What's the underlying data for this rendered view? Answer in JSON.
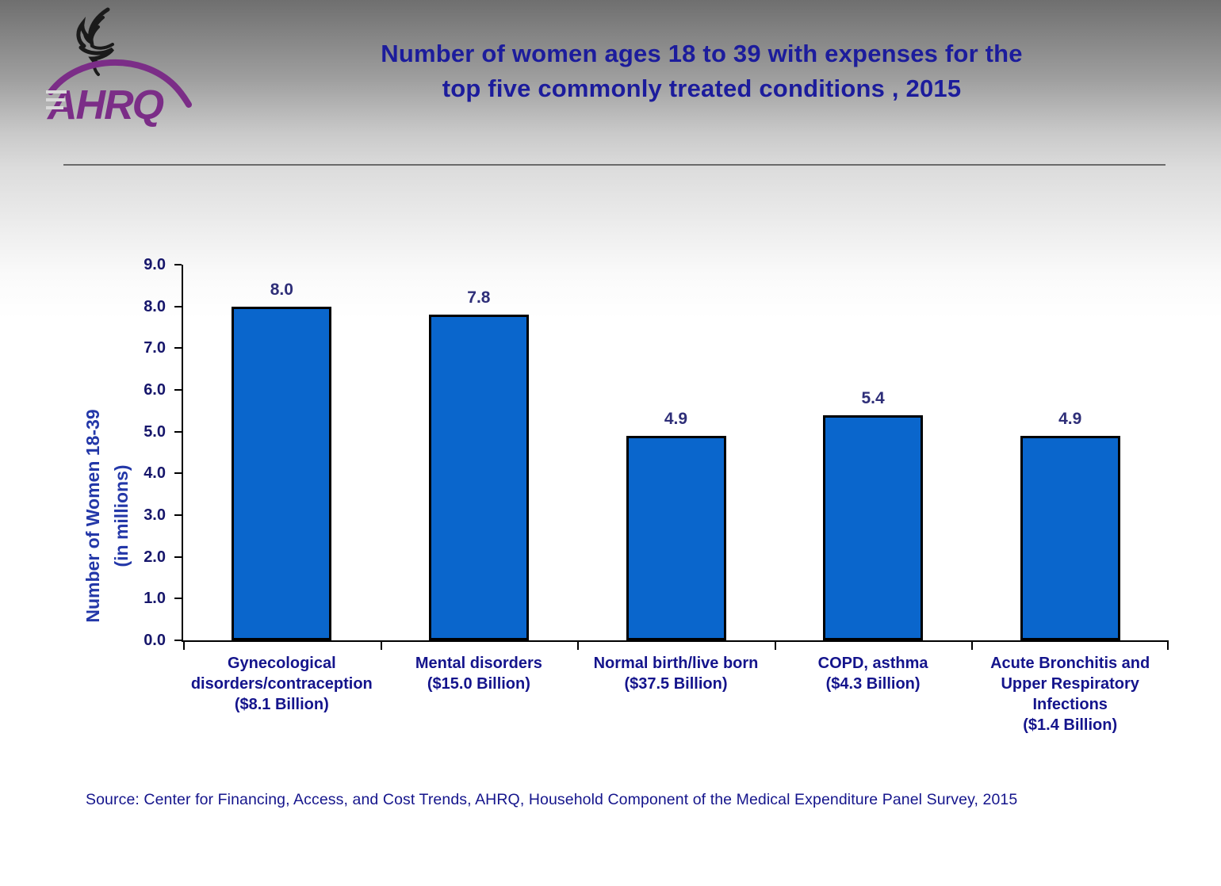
{
  "header": {
    "title_lines": [
      "Number of women ages 18 to 39 with expenses for the",
      "top five commonly treated conditions , 2015"
    ],
    "logo_org": "AHRQ"
  },
  "chart_data": {
    "type": "bar",
    "title": "Number of women ages 18 to 39 with expenses for the top five commonly treated conditions , 2015",
    "ylabel_lines": [
      "Number of Women 18-39",
      "(in millions)"
    ],
    "xlabel": "",
    "categories": [
      {
        "label": "Gynecological disorders/contraception",
        "cost": "($8.1 Billion)"
      },
      {
        "label": "Mental disorders",
        "cost": "($15.0 Billion)"
      },
      {
        "label": "Normal birth/live born",
        "cost": "($37.5 Billion)"
      },
      {
        "label": "COPD, asthma",
        "cost": "($4.3 Billion)"
      },
      {
        "label": "Acute Bronchitis and Upper Respiratory Infections",
        "cost": "($1.4 Billion)"
      }
    ],
    "values": [
      8.0,
      7.8,
      4.9,
      5.4,
      4.9
    ],
    "value_labels": [
      "8.0",
      "7.8",
      "4.9",
      "5.4",
      "4.9"
    ],
    "ylim": [
      0,
      9
    ],
    "ytick_labels": [
      "0.0",
      "1.0",
      "2.0",
      "3.0",
      "4.0",
      "5.0",
      "6.0",
      "7.0",
      "8.0",
      "9.0"
    ],
    "grid": false,
    "legend": "none",
    "bar_color": "#0a66cc",
    "bar_border_color": "#000000"
  },
  "colors": {
    "title_text": "#1c1c9c",
    "axis_label_text": "#14148c",
    "value_label_text": "#2e2e78",
    "logo_purple": "#7b2d87",
    "eagle_black": "#1a1a1a"
  },
  "footer": {
    "source": "Source: Center for Financing, Access, and Cost Trends, AHRQ, Household Component of the Medical Expenditure Panel Survey, 2015"
  }
}
